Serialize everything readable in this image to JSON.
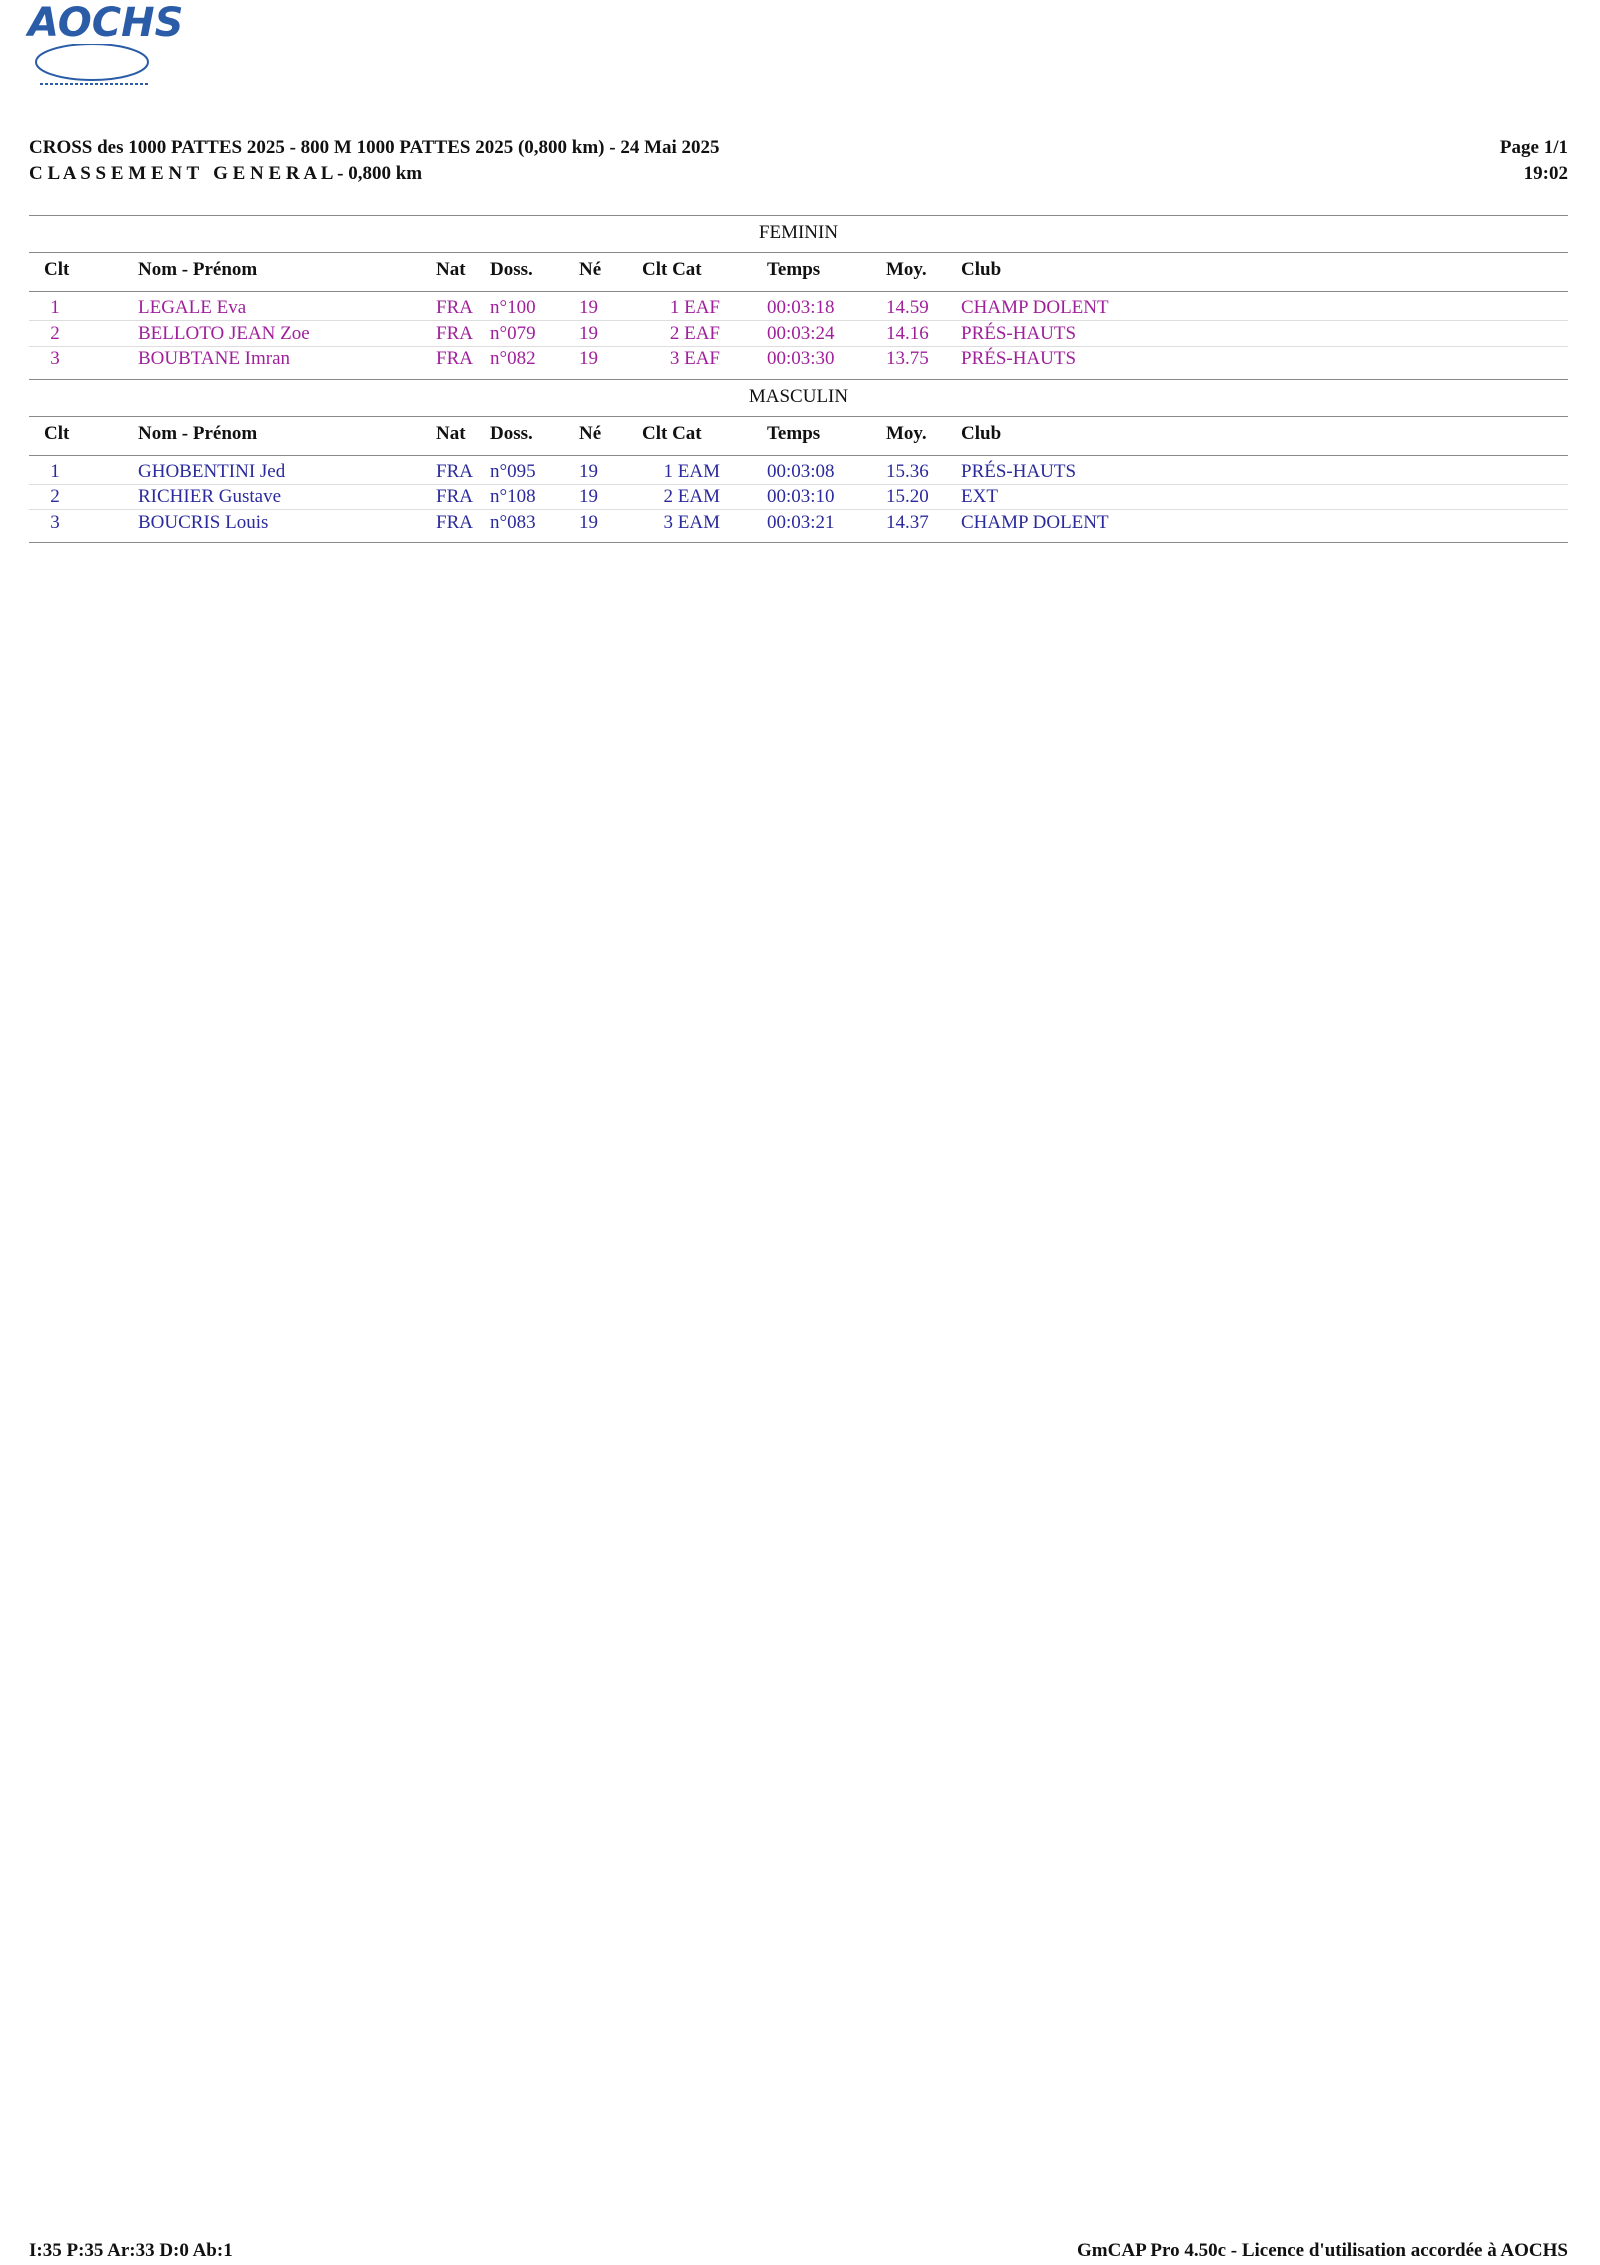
{
  "logo": "AOCHS",
  "header": {
    "title": "CROSS des 1000 PATTES 2025 - 800 M 1000 PATTES 2025 (0,800 km) - 24 Mai 2025",
    "subtitle": "C L A S S E M E N T   G E N E R A L - 0,800 km",
    "page": "Page 1/1",
    "time": "19:02"
  },
  "columns": [
    "Clt",
    "Nom - Prénom",
    "Nat",
    "Doss.",
    "Né",
    "Clt Cat",
    "Temps",
    "Moy.",
    "Club"
  ],
  "sections": [
    {
      "title": "FEMININ",
      "color": "#a0209c",
      "rows": [
        [
          "1",
          "LEGALE Eva",
          "FRA",
          "n°100",
          "19",
          "1 EAF",
          "00:03:18",
          "14.59",
          "CHAMP DOLENT"
        ],
        [
          "2",
          "BELLOTO JEAN Zoe",
          "FRA",
          "n°079",
          "19",
          "2 EAF",
          "00:03:24",
          "14.16",
          "PRÉS-HAUTS"
        ],
        [
          "3",
          "BOUBTANE Imran",
          "FRA",
          "n°082",
          "19",
          "3 EAF",
          "00:03:30",
          "13.75",
          "PRÉS-HAUTS"
        ]
      ]
    },
    {
      "title": "MASCULIN",
      "color": "#2a2a9c",
      "rows": [
        [
          "1",
          "GHOBENTINI Jed",
          "FRA",
          "n°095",
          "19",
          "1 EAM",
          "00:03:08",
          "15.36",
          "PRÉS-HAUTS"
        ],
        [
          "2",
          "RICHIER Gustave",
          "FRA",
          "n°108",
          "19",
          "2 EAM",
          "00:03:10",
          "15.20",
          "EXT"
        ],
        [
          "3",
          "BOUCRIS Louis",
          "FRA",
          "n°083",
          "19",
          "3 EAM",
          "00:03:21",
          "14.37",
          "CHAMP DOLENT"
        ]
      ]
    }
  ],
  "footer": {
    "left": "I:35 P:35 Ar:33 D:0 Ab:1",
    "right": "GmCAP Pro 4.50c - Licence d'utilisation accordée à AOCHS"
  }
}
